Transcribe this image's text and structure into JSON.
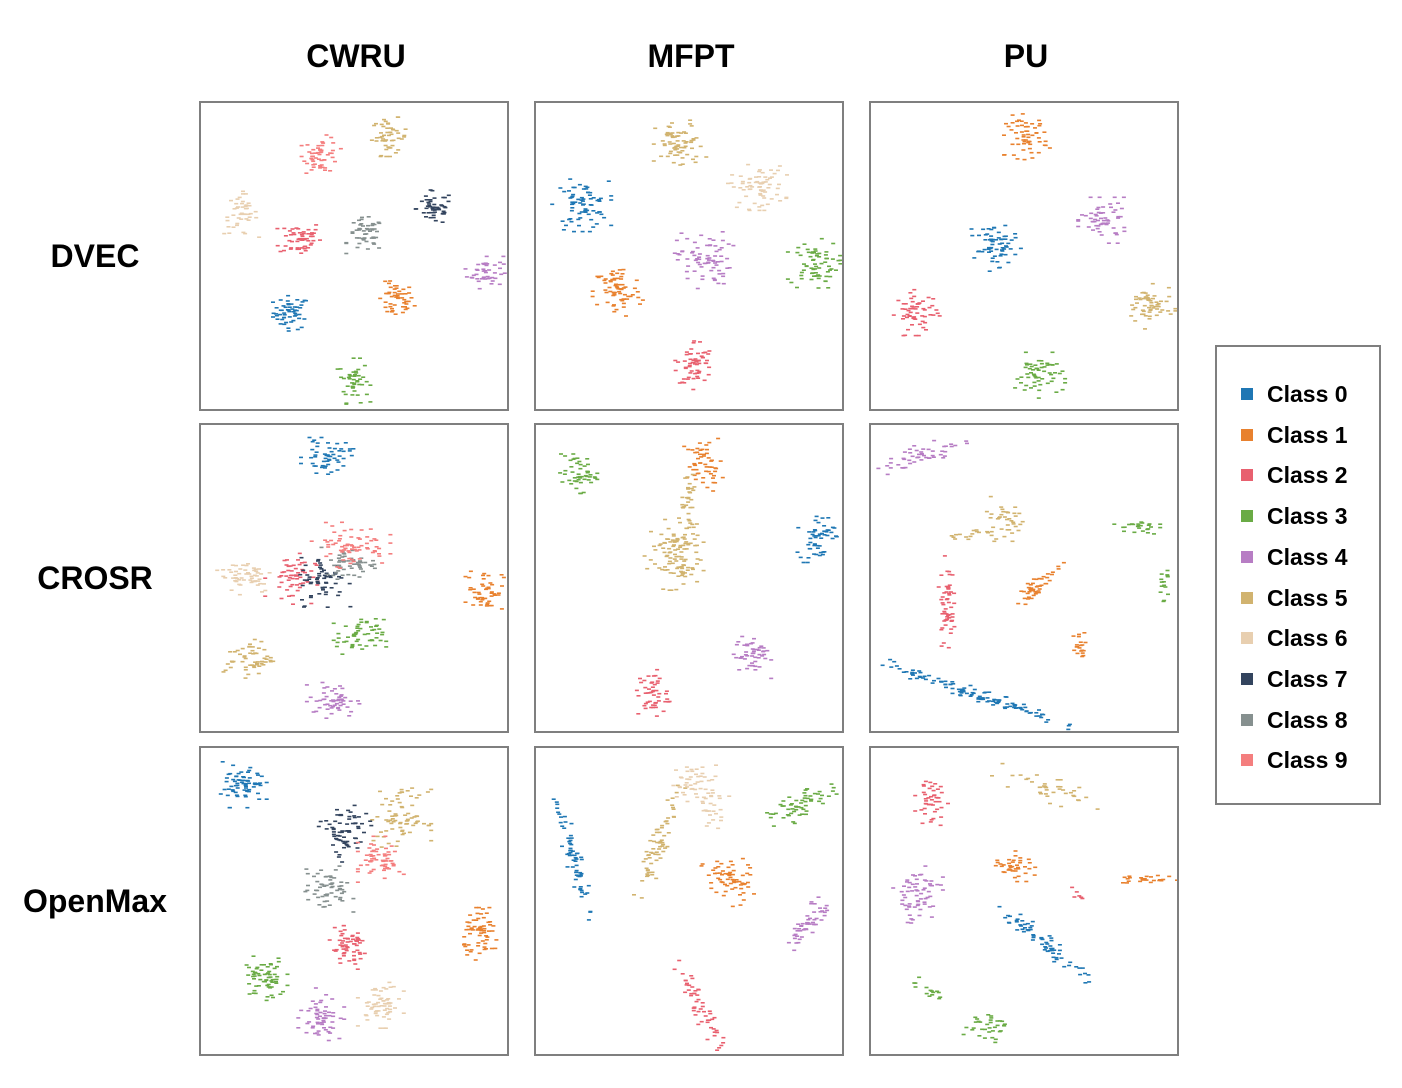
{
  "chart_data": {
    "type": "scatter",
    "columns": [
      "CWRU",
      "MFPT",
      "PU"
    ],
    "rows": [
      "DVEC",
      "CROSR",
      "OpenMax"
    ],
    "legend": {
      "placement": "right",
      "entries": [
        "Class 0",
        "Class 1",
        "Class 2",
        "Class 3",
        "Class 4",
        "Class 5",
        "Class 6",
        "Class 7",
        "Class 8",
        "Class 9"
      ]
    },
    "colors": [
      "#1f77b4",
      "#e8812e",
      "#e8606f",
      "#6aab45",
      "#b77dc4",
      "#d1b36f",
      "#e8cfb0",
      "#33445e",
      "#86908f",
      "#f47e7e"
    ],
    "axis_range": {
      "x": [
        0,
        1
      ],
      "y": [
        0,
        1
      ]
    },
    "grid": false,
    "axes_visible": false,
    "panels": [
      {
        "row": "DVEC",
        "column": "CWRU",
        "clusters": [
          {
            "class": 0,
            "x": 0.29,
            "y": 0.31,
            "sx": 0.03,
            "sy": 0.028,
            "angle": 0,
            "n": 55
          },
          {
            "class": 1,
            "x": 0.64,
            "y": 0.35,
            "sx": 0.03,
            "sy": 0.03,
            "angle": 0,
            "n": 50
          },
          {
            "class": 2,
            "x": 0.32,
            "y": 0.56,
            "sx": 0.035,
            "sy": 0.03,
            "angle": 0,
            "n": 55
          },
          {
            "class": 3,
            "x": 0.5,
            "y": 0.08,
            "sx": 0.025,
            "sy": 0.035,
            "angle": 0,
            "n": 45
          },
          {
            "class": 4,
            "x": 0.94,
            "y": 0.45,
            "sx": 0.03,
            "sy": 0.028,
            "angle": 0,
            "n": 45
          },
          {
            "class": 5,
            "x": 0.62,
            "y": 0.9,
            "sx": 0.03,
            "sy": 0.03,
            "angle": 0,
            "n": 50
          },
          {
            "class": 6,
            "x": 0.12,
            "y": 0.64,
            "sx": 0.028,
            "sy": 0.035,
            "angle": 0,
            "n": 45
          },
          {
            "class": 7,
            "x": 0.77,
            "y": 0.66,
            "sx": 0.03,
            "sy": 0.028,
            "angle": 0,
            "n": 50
          },
          {
            "class": 8,
            "x": 0.54,
            "y": 0.57,
            "sx": 0.03,
            "sy": 0.028,
            "angle": 0,
            "n": 50
          },
          {
            "class": 9,
            "x": 0.39,
            "y": 0.84,
            "sx": 0.03,
            "sy": 0.03,
            "angle": 0,
            "n": 55
          }
        ]
      },
      {
        "row": "DVEC",
        "column": "MFPT",
        "clusters": [
          {
            "class": 0,
            "x": 0.14,
            "y": 0.67,
            "sx": 0.045,
            "sy": 0.04,
            "angle": 0,
            "n": 75
          },
          {
            "class": 1,
            "x": 0.26,
            "y": 0.38,
            "sx": 0.04,
            "sy": 0.045,
            "angle": 0,
            "n": 70
          },
          {
            "class": 2,
            "x": 0.52,
            "y": 0.14,
            "sx": 0.03,
            "sy": 0.04,
            "angle": 0,
            "n": 60
          },
          {
            "class": 3,
            "x": 0.92,
            "y": 0.47,
            "sx": 0.04,
            "sy": 0.04,
            "angle": 0,
            "n": 70
          },
          {
            "class": 4,
            "x": 0.55,
            "y": 0.49,
            "sx": 0.045,
            "sy": 0.045,
            "angle": 0,
            "n": 75
          },
          {
            "class": 5,
            "x": 0.47,
            "y": 0.87,
            "sx": 0.04,
            "sy": 0.04,
            "angle": 0,
            "n": 70
          },
          {
            "class": 6,
            "x": 0.73,
            "y": 0.73,
            "sx": 0.045,
            "sy": 0.035,
            "angle": 0,
            "n": 70
          }
        ]
      },
      {
        "row": "DVEC",
        "column": "PU",
        "clusters": [
          {
            "class": 0,
            "x": 0.41,
            "y": 0.54,
            "sx": 0.04,
            "sy": 0.035,
            "angle": 20,
            "n": 65
          },
          {
            "class": 1,
            "x": 0.51,
            "y": 0.9,
            "sx": 0.035,
            "sy": 0.035,
            "angle": 0,
            "n": 60
          },
          {
            "class": 2,
            "x": 0.14,
            "y": 0.31,
            "sx": 0.035,
            "sy": 0.035,
            "angle": 0,
            "n": 60
          },
          {
            "class": 3,
            "x": 0.55,
            "y": 0.1,
            "sx": 0.04,
            "sy": 0.035,
            "angle": 0,
            "n": 60
          },
          {
            "class": 4,
            "x": 0.77,
            "y": 0.62,
            "sx": 0.04,
            "sy": 0.035,
            "angle": 0,
            "n": 60
          },
          {
            "class": 5,
            "x": 0.92,
            "y": 0.33,
            "sx": 0.04,
            "sy": 0.035,
            "angle": 0,
            "n": 60
          }
        ]
      },
      {
        "row": "CROSR",
        "column": "CWRU",
        "clusters": [
          {
            "class": 0,
            "x": 0.41,
            "y": 0.91,
            "sx": 0.04,
            "sy": 0.028,
            "angle": 0,
            "n": 55
          },
          {
            "class": 1,
            "x": 0.94,
            "y": 0.46,
            "sx": 0.03,
            "sy": 0.035,
            "angle": 0,
            "n": 50
          },
          {
            "class": 2,
            "x": 0.29,
            "y": 0.5,
            "sx": 0.04,
            "sy": 0.04,
            "angle": 0,
            "n": 60
          },
          {
            "class": 3,
            "x": 0.52,
            "y": 0.3,
            "sx": 0.04,
            "sy": 0.03,
            "angle": 0,
            "n": 55
          },
          {
            "class": 4,
            "x": 0.43,
            "y": 0.09,
            "sx": 0.04,
            "sy": 0.028,
            "angle": 0,
            "n": 55
          },
          {
            "class": 5,
            "x": 0.15,
            "y": 0.23,
            "sx": 0.04,
            "sy": 0.03,
            "angle": 0,
            "n": 55
          },
          {
            "class": 6,
            "x": 0.14,
            "y": 0.51,
            "sx": 0.045,
            "sy": 0.03,
            "angle": 0,
            "n": 55
          },
          {
            "class": 7,
            "x": 0.4,
            "y": 0.49,
            "sx": 0.04,
            "sy": 0.04,
            "angle": 0,
            "n": 60
          },
          {
            "class": 8,
            "x": 0.49,
            "y": 0.55,
            "sx": 0.045,
            "sy": 0.025,
            "angle": 0,
            "n": 55
          },
          {
            "class": 9,
            "x": 0.49,
            "y": 0.61,
            "sx": 0.06,
            "sy": 0.035,
            "angle": 0,
            "n": 70
          }
        ]
      },
      {
        "row": "CROSR",
        "column": "MFPT",
        "clusters": [
          {
            "class": 0,
            "x": 0.93,
            "y": 0.64,
            "sx": 0.03,
            "sy": 0.04,
            "angle": 0,
            "n": 55
          },
          {
            "class": 1,
            "x": 0.55,
            "y": 0.88,
            "sx": 0.03,
            "sy": 0.04,
            "angle": 0,
            "n": 55
          },
          {
            "class": 2,
            "x": 0.38,
            "y": 0.11,
            "sx": 0.025,
            "sy": 0.04,
            "angle": 0,
            "n": 50
          },
          {
            "class": 3,
            "x": 0.13,
            "y": 0.85,
            "sx": 0.03,
            "sy": 0.03,
            "angle": 0,
            "n": 50
          },
          {
            "class": 4,
            "x": 0.71,
            "y": 0.24,
            "sx": 0.03,
            "sy": 0.035,
            "angle": 0,
            "n": 50
          },
          {
            "class": 5,
            "x": 0.45,
            "y": 0.58,
            "sx": 0.045,
            "sy": 0.055,
            "angle": 0,
            "n": 110
          },
          {
            "class": 5,
            "x": 0.5,
            "y": 0.73,
            "sx": 0.012,
            "sy": 0.06,
            "angle": 0,
            "n": 35
          }
        ]
      },
      {
        "row": "CROSR",
        "column": "PU",
        "clusters": [
          {
            "class": 0,
            "x": 0.34,
            "y": 0.11,
            "sx": 0.15,
            "sy": 0.01,
            "angle": -18,
            "n": 120
          },
          {
            "class": 1,
            "x": 0.55,
            "y": 0.48,
            "sx": 0.05,
            "sy": 0.012,
            "angle": 42,
            "n": 45
          },
          {
            "class": 1,
            "x": 0.69,
            "y": 0.27,
            "sx": 0.012,
            "sy": 0.025,
            "angle": 0,
            "n": 20
          },
          {
            "class": 2,
            "x": 0.24,
            "y": 0.42,
            "sx": 0.012,
            "sy": 0.07,
            "angle": 0,
            "n": 55
          },
          {
            "class": 3,
            "x": 0.88,
            "y": 0.67,
            "sx": 0.035,
            "sy": 0.012,
            "angle": 0,
            "n": 25
          },
          {
            "class": 3,
            "x": 0.97,
            "y": 0.49,
            "sx": 0.008,
            "sy": 0.035,
            "angle": 0,
            "n": 15
          },
          {
            "class": 4,
            "x": 0.16,
            "y": 0.91,
            "sx": 0.07,
            "sy": 0.02,
            "angle": 20,
            "n": 50
          },
          {
            "class": 5,
            "x": 0.44,
            "y": 0.7,
            "sx": 0.035,
            "sy": 0.035,
            "angle": 0,
            "n": 40
          },
          {
            "class": 5,
            "x": 0.31,
            "y": 0.64,
            "sx": 0.04,
            "sy": 0.008,
            "angle": 10,
            "n": 15
          }
        ]
      },
      {
        "row": "OpenMax",
        "column": "CWRU",
        "clusters": [
          {
            "class": 0,
            "x": 0.13,
            "y": 0.89,
            "sx": 0.035,
            "sy": 0.035,
            "angle": 0,
            "n": 70
          },
          {
            "class": 1,
            "x": 0.93,
            "y": 0.39,
            "sx": 0.03,
            "sy": 0.04,
            "angle": 0,
            "n": 65
          },
          {
            "class": 2,
            "x": 0.48,
            "y": 0.34,
            "sx": 0.035,
            "sy": 0.035,
            "angle": 0,
            "n": 60
          },
          {
            "class": 3,
            "x": 0.2,
            "y": 0.24,
            "sx": 0.035,
            "sy": 0.035,
            "angle": 0,
            "n": 65
          },
          {
            "class": 4,
            "x": 0.39,
            "y": 0.12,
            "sx": 0.035,
            "sy": 0.04,
            "angle": 0,
            "n": 60
          },
          {
            "class": 5,
            "x": 0.66,
            "y": 0.78,
            "sx": 0.045,
            "sy": 0.045,
            "angle": 0,
            "n": 75
          },
          {
            "class": 6,
            "x": 0.59,
            "y": 0.15,
            "sx": 0.035,
            "sy": 0.035,
            "angle": 0,
            "n": 60
          },
          {
            "class": 7,
            "x": 0.47,
            "y": 0.73,
            "sx": 0.04,
            "sy": 0.045,
            "angle": 0,
            "n": 70
          },
          {
            "class": 8,
            "x": 0.41,
            "y": 0.54,
            "sx": 0.04,
            "sy": 0.035,
            "angle": 0,
            "n": 60
          },
          {
            "class": 9,
            "x": 0.59,
            "y": 0.64,
            "sx": 0.035,
            "sy": 0.035,
            "angle": 0,
            "n": 60
          }
        ]
      },
      {
        "row": "OpenMax",
        "column": "MFPT",
        "clusters": [
          {
            "class": 0,
            "x": 0.11,
            "y": 0.65,
            "sx": 0.1,
            "sy": 0.012,
            "angle": -75,
            "n": 65
          },
          {
            "class": 1,
            "x": 0.63,
            "y": 0.57,
            "sx": 0.04,
            "sy": 0.04,
            "angle": 0,
            "n": 65
          },
          {
            "class": 2,
            "x": 0.54,
            "y": 0.14,
            "sx": 0.08,
            "sy": 0.014,
            "angle": -65,
            "n": 55
          },
          {
            "class": 3,
            "x": 0.88,
            "y": 0.82,
            "sx": 0.055,
            "sy": 0.02,
            "angle": 25,
            "n": 60
          },
          {
            "class": 4,
            "x": 0.9,
            "y": 0.43,
            "sx": 0.06,
            "sy": 0.015,
            "angle": 55,
            "n": 50
          },
          {
            "class": 5,
            "x": 0.4,
            "y": 0.7,
            "sx": 0.09,
            "sy": 0.015,
            "angle": 70,
            "n": 65
          },
          {
            "class": 6,
            "x": 0.52,
            "y": 0.9,
            "sx": 0.04,
            "sy": 0.03,
            "angle": 0,
            "n": 45
          },
          {
            "class": 6,
            "x": 0.58,
            "y": 0.81,
            "sx": 0.025,
            "sy": 0.03,
            "angle": 0,
            "n": 25
          }
        ]
      },
      {
        "row": "OpenMax",
        "column": "PU",
        "clusters": [
          {
            "class": 0,
            "x": 0.57,
            "y": 0.36,
            "sx": 0.09,
            "sy": 0.014,
            "angle": -38,
            "n": 70
          },
          {
            "class": 1,
            "x": 0.47,
            "y": 0.62,
            "sx": 0.035,
            "sy": 0.025,
            "angle": 0,
            "n": 40
          },
          {
            "class": 1,
            "x": 0.91,
            "y": 0.57,
            "sx": 0.05,
            "sy": 0.008,
            "angle": 0,
            "n": 25
          },
          {
            "class": 2,
            "x": 0.19,
            "y": 0.84,
            "sx": 0.025,
            "sy": 0.045,
            "angle": 0,
            "n": 45
          },
          {
            "class": 2,
            "x": 0.68,
            "y": 0.53,
            "sx": 0.01,
            "sy": 0.01,
            "angle": 0,
            "n": 6
          },
          {
            "class": 3,
            "x": 0.37,
            "y": 0.08,
            "sx": 0.035,
            "sy": 0.025,
            "angle": 0,
            "n": 35
          },
          {
            "class": 3,
            "x": 0.18,
            "y": 0.2,
            "sx": 0.04,
            "sy": 0.01,
            "angle": -30,
            "n": 15
          },
          {
            "class": 4,
            "x": 0.14,
            "y": 0.52,
            "sx": 0.04,
            "sy": 0.045,
            "angle": 0,
            "n": 65
          },
          {
            "class": 5,
            "x": 0.56,
            "y": 0.88,
            "sx": 0.1,
            "sy": 0.02,
            "angle": -15,
            "n": 40
          }
        ]
      }
    ]
  }
}
